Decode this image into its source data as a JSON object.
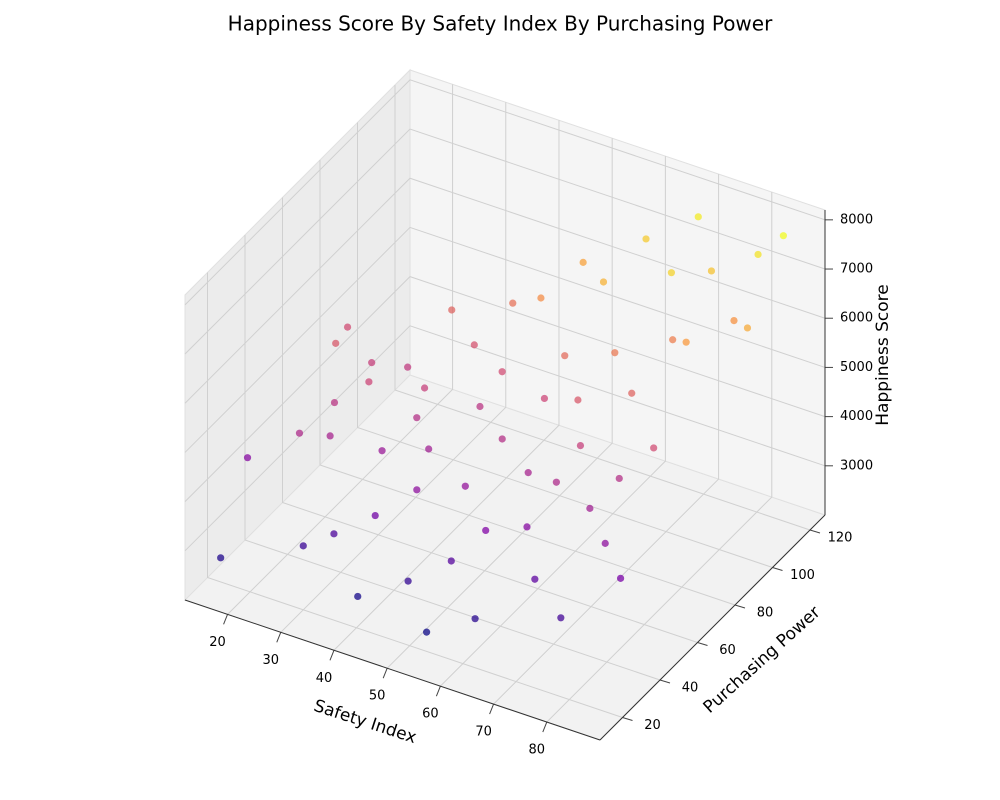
{
  "chart_data": {
    "type": "scatter3d",
    "title": "Happiness Score By Safety Index By Purchasing Power",
    "x_label": "Safety Index",
    "y_label": "Purchasing Power",
    "z_label": "Happiness Score",
    "cmap": "plasma",
    "x": [
      16,
      18,
      22,
      24,
      26,
      28,
      30,
      32,
      34,
      36,
      38,
      40,
      41,
      43,
      45,
      47,
      49,
      50,
      52,
      54,
      55,
      57,
      59,
      60,
      61,
      63,
      65,
      66,
      68,
      70,
      71,
      72,
      74,
      75,
      77,
      78,
      80,
      82,
      84,
      86,
      20,
      35,
      44,
      53,
      62,
      69,
      76,
      58,
      48,
      64,
      73,
      81,
      85,
      30,
      42,
      56,
      67,
      79,
      39,
      27
    ],
    "y": [
      30,
      10,
      60,
      35,
      48,
      40,
      55,
      70,
      25,
      45,
      62,
      30,
      80,
      50,
      38,
      66,
      22,
      90,
      44,
      58,
      28,
      72,
      35,
      95,
      52,
      18,
      40,
      84,
      60,
      30,
      100,
      76,
      48,
      110,
      24,
      88,
      65,
      115,
      36,
      98,
      72,
      85,
      92,
      104,
      112,
      120,
      58,
      80,
      75,
      70,
      95,
      105,
      120,
      20,
      15,
      12,
      50,
      42,
      55,
      65
    ],
    "z": [
      4200,
      3000,
      5600,
      4800,
      5000,
      4700,
      5300,
      5100,
      3500,
      4500,
      5200,
      3900,
      5500,
      4600,
      4300,
      5000,
      3200,
      6400,
      4400,
      4900,
      3600,
      5300,
      4100,
      6900,
      4700,
      3100,
      4200,
      6100,
      5200,
      3700,
      7300,
      5800,
      4600,
      7100,
      3400,
      6600,
      5400,
      7500,
      4000,
      6800,
      5400,
      5800,
      6000,
      6700,
      7200,
      7600,
      4900,
      5900,
      5400,
      5600,
      6200,
      6500,
      7800,
      3300,
      2900,
      2800,
      4800,
      4300,
      4900,
      5200
    ],
    "xlim": [
      12,
      90
    ],
    "xticks": [
      20,
      30,
      40,
      50,
      60,
      70,
      80
    ],
    "ylim": [
      8,
      128
    ],
    "yticks": [
      20,
      40,
      60,
      80,
      100,
      120
    ],
    "zlim": [
      2000,
      8200
    ],
    "zticks": [
      3000,
      4000,
      5000,
      6000,
      7000,
      8000
    ],
    "grid": true
  }
}
